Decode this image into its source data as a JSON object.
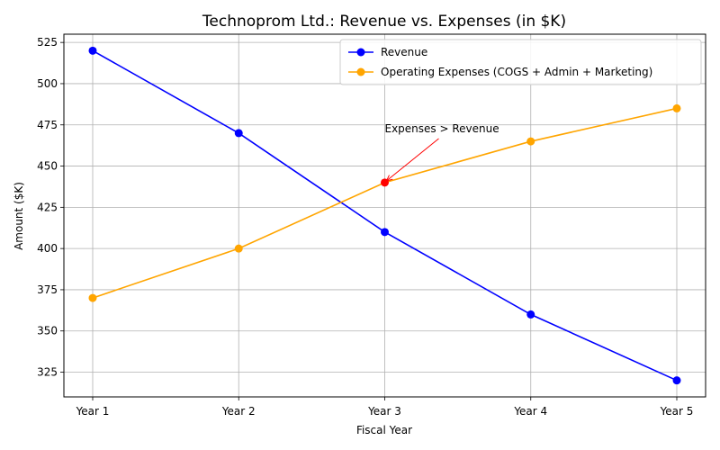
{
  "chart_data": {
    "type": "line",
    "title": "Technoprom Ltd.: Revenue vs. Expenses (in $K)",
    "xlabel": "Fiscal Year",
    "ylabel": "Amount ($K)",
    "categories": [
      "Year 1",
      "Year 2",
      "Year 3",
      "Year 4",
      "Year 5"
    ],
    "ylim": [
      310,
      530
    ],
    "yticks": [
      325,
      350,
      375,
      400,
      425,
      450,
      475,
      500,
      525
    ],
    "grid": true,
    "legend_position": "top-right",
    "series": [
      {
        "name": "Revenue",
        "color": "#0000ff",
        "values": [
          520,
          470,
          410,
          360,
          320
        ]
      },
      {
        "name": "Operating Expenses (COGS + Admin + Marketing)",
        "color": "#ffa500",
        "values": [
          370,
          400,
          440,
          465,
          485
        ]
      }
    ],
    "highlight": {
      "series_index": 1,
      "category_index": 2,
      "color": "#ff0000"
    },
    "annotation": {
      "text": "Expenses > Revenue",
      "category_index": 2,
      "value": 440,
      "arrow_color": "#ff0000"
    }
  }
}
